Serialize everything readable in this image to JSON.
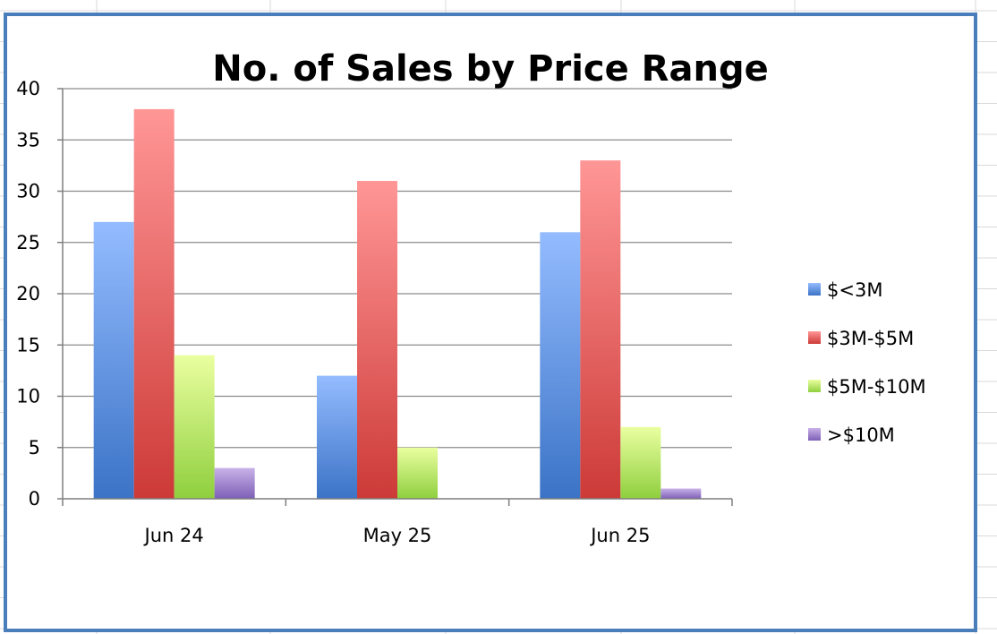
{
  "colors": {
    "sheet_grid": "#d9d9d9",
    "chart_border": "#4a7ebb",
    "gridline": "#8c8c8c",
    "axis": "#7f7f7f"
  },
  "chart_data": {
    "type": "bar",
    "title": "No. of Sales by Price Range",
    "xlabel": "",
    "ylabel": "",
    "categories": [
      "Jun 24",
      "May 25",
      "Jun 25"
    ],
    "ylim": [
      0,
      40
    ],
    "yticks": [
      0,
      5,
      10,
      15,
      20,
      25,
      30,
      35,
      40
    ],
    "grid": true,
    "legend_position": "right",
    "series": [
      {
        "name": "$<3M",
        "values": [
          27,
          12,
          26
        ],
        "color_top": "#94bcff",
        "color_bottom": "#3b73c6"
      },
      {
        "name": "$3M-$5M",
        "values": [
          38,
          31,
          33
        ],
        "color_top": "#ff9696",
        "color_bottom": "#cc3a37"
      },
      {
        "name": "$5M-$10M",
        "values": [
          14,
          5,
          7
        ],
        "color_top": "#eaffa0",
        "color_bottom": "#8fcf3e"
      },
      {
        "name": ">$10M",
        "values": [
          3,
          0,
          1
        ],
        "color_top": "#c8b2e8",
        "color_bottom": "#7d5fb6"
      }
    ]
  }
}
